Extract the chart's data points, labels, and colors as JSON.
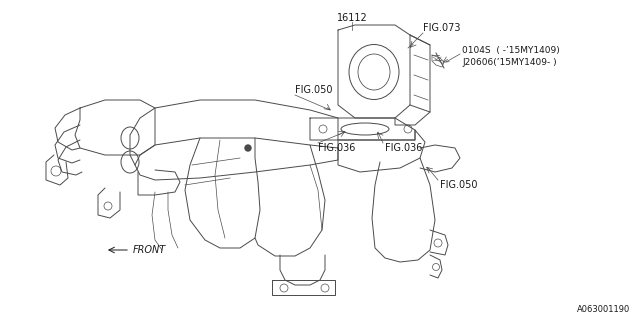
{
  "bg_color": "#ffffff",
  "line_color": "#4a4a4a",
  "text_color": "#1a1a1a",
  "fig_width": 6.4,
  "fig_height": 3.2,
  "dpi": 100,
  "part_number": "A063001190",
  "label_16112": "16112",
  "label_fig073": "FIG.073",
  "label_0104S_1": "0104S  ( -’15MY1409)",
  "label_0104S_2": "J20606(’15MY1409- )",
  "label_fig050_top": "FIG.050",
  "label_fig036_1": "FIG.036",
  "label_fig036_2": "FIG.036",
  "label_fig050_bot": "FIG.050",
  "label_front": "FRONT"
}
